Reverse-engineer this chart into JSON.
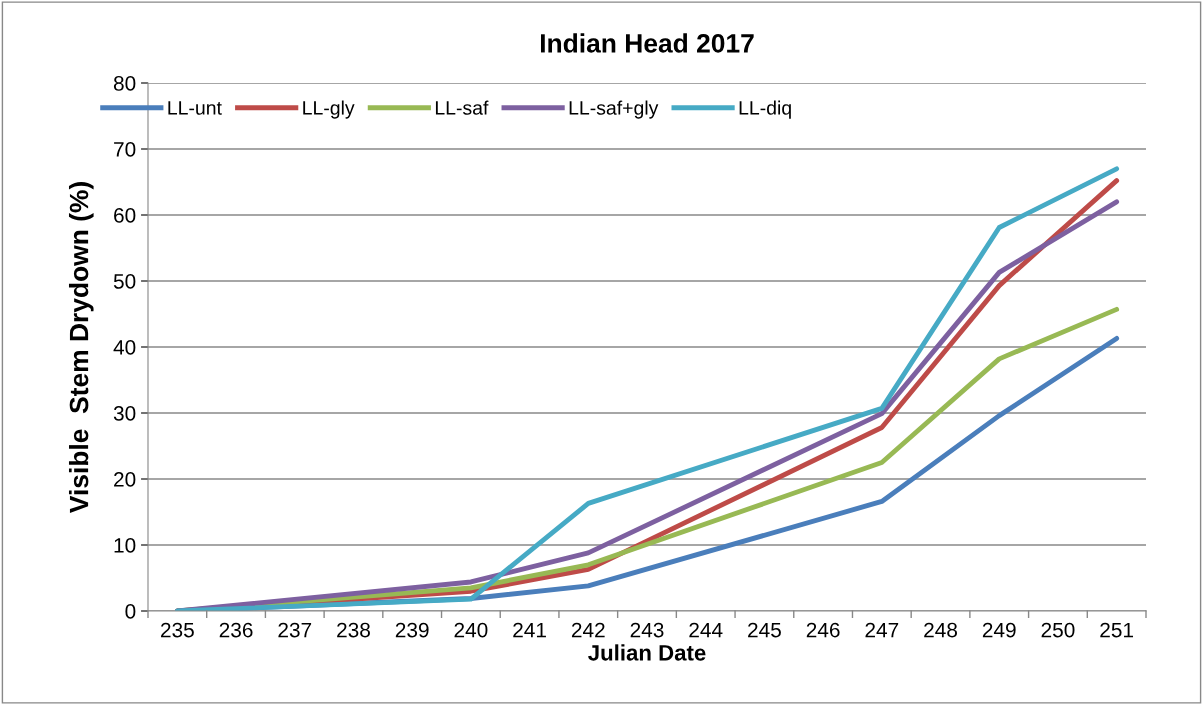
{
  "chart_data": {
    "type": "line",
    "title": "Indian Head 2017",
    "xlabel": "Julian Date",
    "ylabel": "Visible  Stem Drydown (%)",
    "x": [
      235,
      240,
      242,
      247,
      249,
      251
    ],
    "series": [
      {
        "name": "LL-unt",
        "color": "#4a7ebb",
        "values": [
          0,
          1.9,
          3.8,
          16.6,
          29.6,
          41.3
        ]
      },
      {
        "name": "LL-gly",
        "color": "#be4b48",
        "values": [
          0,
          3,
          6.3,
          27.8,
          49.3,
          65.2
        ]
      },
      {
        "name": "LL-saf",
        "color": "#98b954",
        "values": [
          0,
          3.5,
          7,
          22.5,
          38.2,
          45.7
        ]
      },
      {
        "name": "LL-saf+gly",
        "color": "#7d60a0",
        "values": [
          0,
          4.4,
          8.8,
          29.9,
          51.3,
          62
        ]
      },
      {
        "name": "LL-diq",
        "color": "#46aac5",
        "values": [
          0,
          1.8,
          16.3,
          30.7,
          58.1,
          67
        ]
      }
    ],
    "xlim": [
      234.5,
      251.5
    ],
    "xticks": [
      235,
      236,
      237,
      238,
      239,
      240,
      241,
      242,
      243,
      244,
      245,
      246,
      247,
      248,
      249,
      250,
      251
    ],
    "ylim": [
      0,
      80
    ],
    "yticks": [
      0,
      10,
      20,
      30,
      40,
      50,
      60,
      70,
      80
    ],
    "grid": "y",
    "legend": "top",
    "marker": "none",
    "line_style": "solid"
  }
}
